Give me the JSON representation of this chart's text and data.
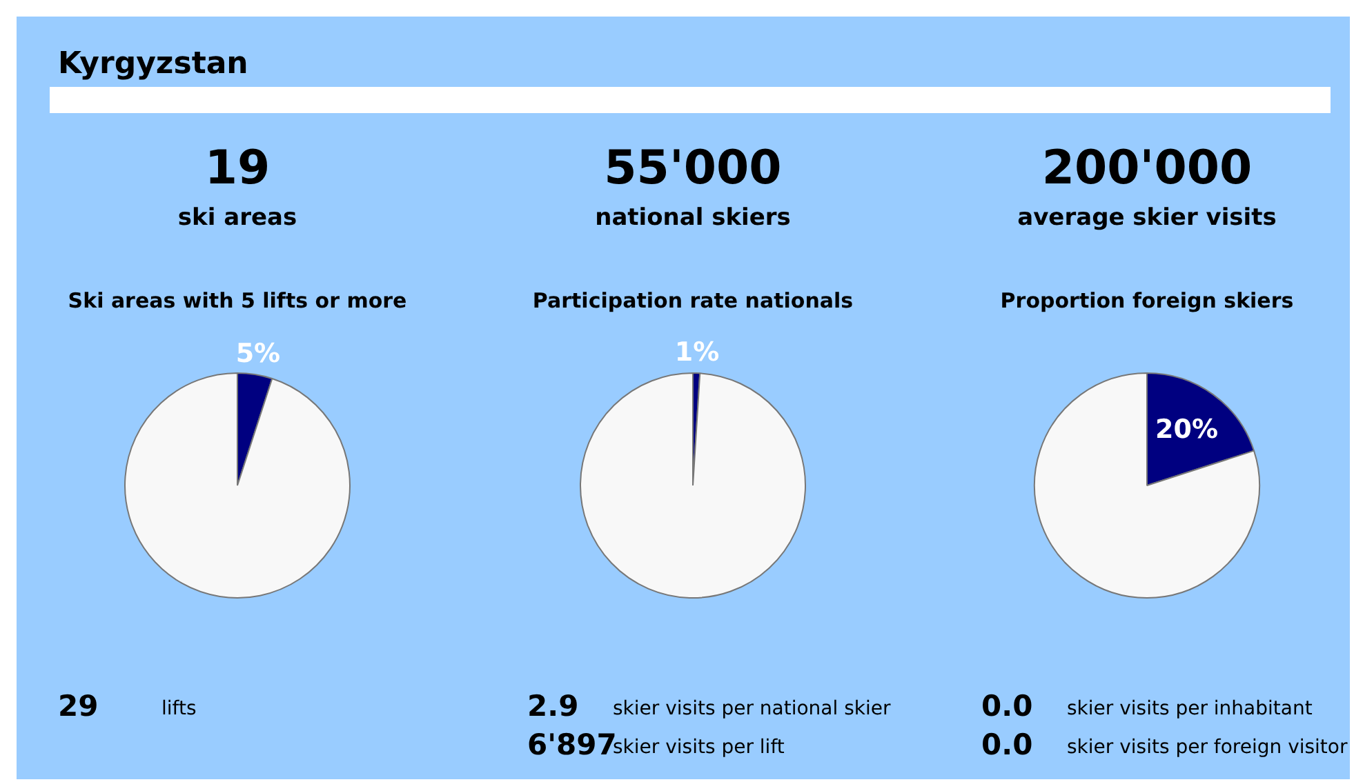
{
  "chart_data": [
    {
      "type": "other",
      "title": "Kyrgyzstan"
    },
    {
      "type": "pie",
      "title": "Ski areas with 5 lifts or more",
      "categories": [
        null,
        null
      ],
      "values": [
        5,
        95
      ],
      "colors": [
        "#000080",
        "#f8f8f8"
      ],
      "value_labels": [
        "5%",
        null
      ],
      "legend": false,
      "annotations": [
        "19",
        "ski areas",
        "29",
        "lifts"
      ]
    },
    {
      "type": "pie",
      "title": "Participation rate nationals",
      "categories": [
        null,
        null
      ],
      "values": [
        1,
        99
      ],
      "colors": [
        "#000080",
        "#f8f8f8"
      ],
      "value_labels": [
        "1%",
        null
      ],
      "legend": false,
      "annotations": [
        "55'000",
        "national skiers",
        "2.9",
        "skier visits per national skier",
        "6'897",
        "skier visits per lift"
      ]
    },
    {
      "type": "pie",
      "title": "Proportion foreign skiers",
      "categories": [
        null,
        null
      ],
      "values": [
        20,
        80
      ],
      "colors": [
        "#000080",
        "#f8f8f8"
      ],
      "value_labels": [
        "20%",
        null
      ],
      "legend": false,
      "annotations": [
        "200'000",
        "average skier visits",
        "0.0",
        "skier visits per inhabitant",
        "0.0",
        "skier visits per foreign visitor"
      ]
    }
  ]
}
